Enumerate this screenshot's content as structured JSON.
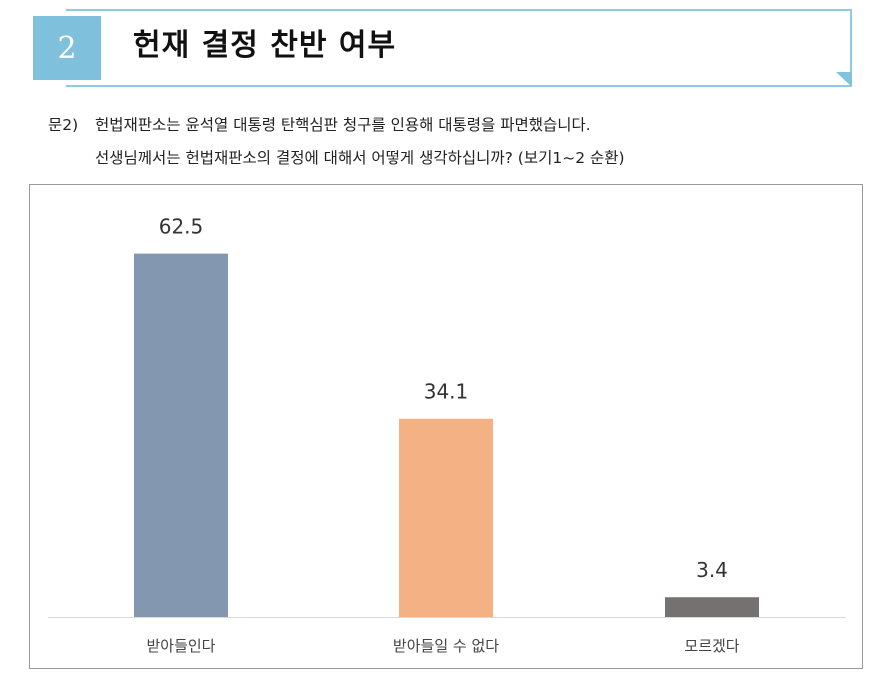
{
  "header": {
    "number": "2",
    "title": "헌재 결정 찬반 여부"
  },
  "question": {
    "label": "문2)",
    "line1": "헌법재판소는 윤석열 대통령 탄핵심판 청구를 인용해 대통령을 파면했습니다.",
    "line2": "선생님께서는 헌법재판소의 결정에 대해서 어떻게 생각하십니까? (보기1~2 순환)"
  },
  "chart_data": {
    "type": "bar",
    "categories": [
      "받아들인다",
      "받아들일 수 없다",
      "모르겠다"
    ],
    "values": [
      62.5,
      34.1,
      3.4
    ],
    "data_labels": [
      "62.5",
      "34.1",
      "3.4"
    ],
    "colors": [
      "#8497b0",
      "#f4b183",
      "#767171"
    ],
    "title": "",
    "xlabel": "",
    "ylabel": "",
    "ylim": [
      0,
      70
    ],
    "grid": false,
    "legend": "none"
  }
}
